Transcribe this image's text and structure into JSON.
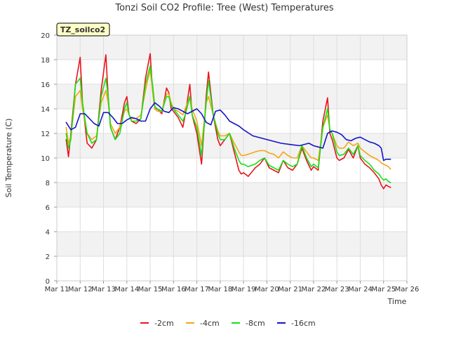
{
  "chart_data": {
    "type": "line",
    "title": "Tonzi Soil CO2 Profile: Tree (West) Temperatures",
    "xlabel": "Time",
    "ylabel": "Soil Temperature (C)",
    "badge": "TZ_soilco2",
    "xlim": [
      11,
      26
    ],
    "ylim": [
      0,
      20
    ],
    "x_ticks": [
      11,
      12,
      13,
      14,
      15,
      16,
      17,
      18,
      19,
      20,
      21,
      22,
      23,
      24,
      25,
      26
    ],
    "x_tick_labels": [
      "Mar 11",
      "Mar 12",
      "Mar 13",
      "Mar 14",
      "Mar 15",
      "Mar 16",
      "Mar 17",
      "Mar 18",
      "Mar 19",
      "Mar 20",
      "Mar 21",
      "Mar 22",
      "Mar 23",
      "Mar 24",
      "Mar 25",
      "Mar 26"
    ],
    "y_ticks": [
      0,
      2,
      4,
      6,
      8,
      10,
      12,
      14,
      16,
      18,
      20
    ],
    "y_tick_labels": [
      "0",
      "2",
      "4",
      "6",
      "8",
      "10",
      "12",
      "14",
      "16",
      "18",
      "20"
    ],
    "legend_position": "bottom-center",
    "series": [
      {
        "name": "-2cm",
        "color": "#e8141a",
        "x": [
          11.4,
          11.5,
          11.6,
          11.8,
          12.0,
          12.1,
          12.3,
          12.5,
          12.7,
          12.9,
          13.1,
          13.2,
          13.3,
          13.5,
          13.7,
          13.9,
          14.0,
          14.1,
          14.2,
          14.4,
          14.6,
          14.8,
          15.0,
          15.1,
          15.2,
          15.3,
          15.5,
          15.7,
          15.8,
          15.9,
          16.0,
          16.2,
          16.4,
          16.5,
          16.7,
          16.8,
          17.0,
          17.2,
          17.4,
          17.5,
          17.7,
          17.9,
          18.0,
          18.2,
          18.4,
          18.6,
          18.8,
          18.9,
          19.0,
          19.2,
          19.5,
          19.7,
          19.9,
          20.1,
          20.3,
          20.5,
          20.7,
          20.9,
          21.1,
          21.3,
          21.5,
          21.7,
          21.9,
          22.0,
          22.2,
          22.4,
          22.6,
          22.7,
          22.8,
          23.0,
          23.1,
          23.3,
          23.5,
          23.7,
          23.9,
          24.0,
          24.2,
          24.4,
          24.6,
          24.8,
          24.9,
          25.0,
          25.1,
          25.2,
          25.3
        ],
        "y": [
          11.5,
          10.1,
          12.0,
          16.0,
          18.2,
          14.5,
          11.2,
          10.8,
          11.5,
          15.5,
          18.4,
          15.0,
          12.5,
          11.5,
          12.5,
          14.5,
          15.0,
          13.5,
          13.0,
          12.8,
          13.2,
          16.5,
          18.5,
          15.5,
          14.0,
          14.0,
          13.6,
          15.7,
          15.3,
          14.0,
          13.8,
          13.3,
          12.5,
          13.5,
          16.0,
          13.5,
          12.0,
          9.5,
          15.0,
          17.0,
          13.5,
          11.5,
          11.0,
          11.5,
          12.0,
          10.5,
          9.0,
          8.7,
          8.8,
          8.5,
          9.2,
          9.5,
          10.0,
          9.2,
          9.0,
          8.8,
          9.8,
          9.2,
          9.0,
          9.5,
          10.8,
          9.8,
          9.0,
          9.3,
          9.0,
          13.0,
          14.9,
          12.0,
          11.5,
          10.0,
          9.8,
          10.0,
          10.7,
          10.0,
          11.0,
          10.0,
          9.5,
          9.2,
          8.8,
          8.3,
          7.8,
          7.5,
          7.8,
          7.7,
          7.6
        ]
      },
      {
        "name": "-4cm",
        "color": "#f5a614",
        "x": [
          11.4,
          11.5,
          11.6,
          11.8,
          12.0,
          12.1,
          12.3,
          12.5,
          12.7,
          12.9,
          13.1,
          13.2,
          13.3,
          13.5,
          13.7,
          13.9,
          14.0,
          14.1,
          14.2,
          14.4,
          14.6,
          14.8,
          15.0,
          15.1,
          15.2,
          15.3,
          15.5,
          15.7,
          15.8,
          15.9,
          16.0,
          16.2,
          16.4,
          16.5,
          16.7,
          16.8,
          17.0,
          17.2,
          17.4,
          17.5,
          17.7,
          17.9,
          18.0,
          18.2,
          18.4,
          18.6,
          18.8,
          18.9,
          19.0,
          19.2,
          19.5,
          19.7,
          19.9,
          20.1,
          20.3,
          20.5,
          20.7,
          20.9,
          21.1,
          21.3,
          21.5,
          21.7,
          21.9,
          22.0,
          22.2,
          22.4,
          22.6,
          22.7,
          22.8,
          23.0,
          23.1,
          23.3,
          23.5,
          23.7,
          23.9,
          24.0,
          24.2,
          24.4,
          24.6,
          24.8,
          24.9,
          25.0,
          25.1,
          25.2,
          25.3
        ],
        "y": [
          12.5,
          11.2,
          11.8,
          15.0,
          15.5,
          14.0,
          12.0,
          11.5,
          11.8,
          14.5,
          15.5,
          14.5,
          12.8,
          12.0,
          12.5,
          13.8,
          14.0,
          13.5,
          13.2,
          13.2,
          13.5,
          15.5,
          17.2,
          15.5,
          14.0,
          13.8,
          13.8,
          15.2,
          15.2,
          14.5,
          14.0,
          13.8,
          13.5,
          14.0,
          15.0,
          14.0,
          13.0,
          11.0,
          14.5,
          15.0,
          13.5,
          12.2,
          11.8,
          11.8,
          12.0,
          11.2,
          10.5,
          10.2,
          10.2,
          10.3,
          10.5,
          10.6,
          10.6,
          10.4,
          10.3,
          10.0,
          10.5,
          10.2,
          10.0,
          10.0,
          11.0,
          10.5,
          10.0,
          10.0,
          9.8,
          12.5,
          13.5,
          12.3,
          12.0,
          11.0,
          10.8,
          10.8,
          11.3,
          11.0,
          11.2,
          10.8,
          10.5,
          10.2,
          10.0,
          9.8,
          9.6,
          9.5,
          9.4,
          9.3,
          9.1
        ]
      },
      {
        "name": "-8cm",
        "color": "#16e016",
        "x": [
          11.4,
          11.5,
          11.6,
          11.8,
          12.0,
          12.1,
          12.3,
          12.5,
          12.7,
          12.9,
          13.1,
          13.2,
          13.3,
          13.5,
          13.7,
          13.9,
          14.0,
          14.1,
          14.2,
          14.4,
          14.6,
          14.8,
          15.0,
          15.1,
          15.2,
          15.3,
          15.5,
          15.7,
          15.8,
          15.9,
          16.0,
          16.2,
          16.4,
          16.5,
          16.7,
          16.8,
          17.0,
          17.2,
          17.4,
          17.5,
          17.7,
          17.9,
          18.0,
          18.2,
          18.4,
          18.6,
          18.8,
          18.9,
          19.0,
          19.2,
          19.5,
          19.7,
          19.9,
          20.1,
          20.3,
          20.5,
          20.7,
          20.9,
          21.1,
          21.3,
          21.5,
          21.7,
          21.9,
          22.0,
          22.2,
          22.4,
          22.6,
          22.7,
          22.8,
          23.0,
          23.1,
          23.3,
          23.5,
          23.7,
          23.9,
          24.0,
          24.2,
          24.4,
          24.6,
          24.8,
          24.9,
          25.0,
          25.1,
          25.2,
          25.3
        ],
        "y": [
          12.0,
          10.8,
          11.5,
          16.0,
          16.5,
          14.5,
          12.0,
          11.2,
          11.5,
          15.0,
          16.5,
          15.0,
          12.5,
          11.5,
          12.0,
          14.0,
          14.5,
          13.5,
          13.0,
          13.0,
          13.2,
          16.0,
          17.5,
          16.0,
          14.2,
          14.0,
          13.8,
          15.0,
          15.0,
          14.3,
          14.0,
          13.5,
          13.0,
          13.5,
          15.0,
          13.5,
          12.5,
          10.2,
          14.5,
          16.3,
          13.5,
          12.0,
          11.5,
          11.5,
          12.0,
          10.8,
          9.8,
          9.5,
          9.5,
          9.3,
          9.5,
          9.8,
          10.0,
          9.4,
          9.2,
          9.0,
          9.8,
          9.5,
          9.3,
          9.5,
          11.0,
          10.0,
          9.3,
          9.5,
          9.2,
          12.5,
          14.0,
          12.3,
          12.0,
          10.5,
          10.2,
          10.3,
          10.8,
          10.3,
          11.0,
          10.2,
          9.8,
          9.5,
          9.0,
          8.7,
          8.4,
          8.2,
          8.3,
          8.1,
          8.0
        ]
      },
      {
        "name": "-16cm",
        "color": "#1414c8",
        "x": [
          11.4,
          11.6,
          11.8,
          12.0,
          12.2,
          12.4,
          12.6,
          12.8,
          13.0,
          13.2,
          13.4,
          13.6,
          13.8,
          14.0,
          14.2,
          14.4,
          14.6,
          14.8,
          15.0,
          15.2,
          15.4,
          15.6,
          15.8,
          16.0,
          16.2,
          16.4,
          16.6,
          16.8,
          17.0,
          17.2,
          17.4,
          17.6,
          17.8,
          18.0,
          18.2,
          18.4,
          18.6,
          18.8,
          19.0,
          19.4,
          19.8,
          20.2,
          20.6,
          21.0,
          21.4,
          21.8,
          22.0,
          22.2,
          22.4,
          22.6,
          22.8,
          23.0,
          23.2,
          23.4,
          23.6,
          23.8,
          24.0,
          24.2,
          24.4,
          24.6,
          24.8,
          24.9,
          25.0,
          25.1,
          25.2,
          25.3
        ],
        "y": [
          12.9,
          12.3,
          12.5,
          13.6,
          13.6,
          13.2,
          12.8,
          12.6,
          13.7,
          13.7,
          13.3,
          12.8,
          12.8,
          13.1,
          13.3,
          13.2,
          13.0,
          13.0,
          14.0,
          14.5,
          14.2,
          13.8,
          13.7,
          14.1,
          14.0,
          13.8,
          13.6,
          13.8,
          14.0,
          13.6,
          12.9,
          12.7,
          13.8,
          13.9,
          13.5,
          13.0,
          12.8,
          12.6,
          12.3,
          11.8,
          11.6,
          11.4,
          11.2,
          11.1,
          11.0,
          11.2,
          11.0,
          10.9,
          10.8,
          12.0,
          12.2,
          12.1,
          11.9,
          11.5,
          11.4,
          11.6,
          11.7,
          11.5,
          11.3,
          11.2,
          11.0,
          10.8,
          9.8,
          9.9,
          9.9,
          9.9
        ]
      }
    ]
  }
}
